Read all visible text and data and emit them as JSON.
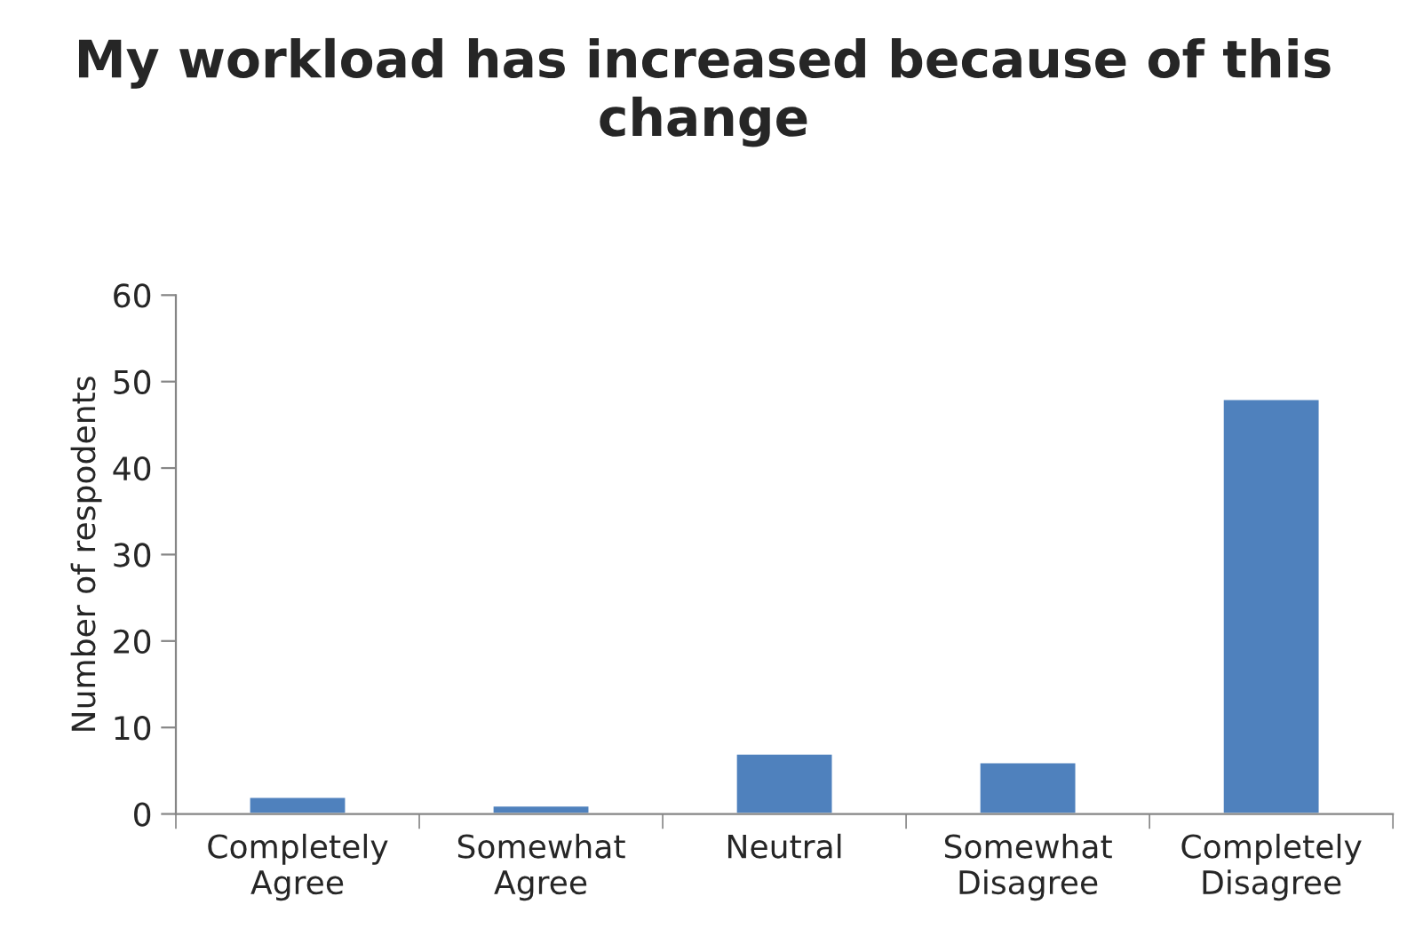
{
  "chart_data": {
    "type": "bar",
    "title": "My workload has increased because of this change",
    "ylabel": "Number of respodents",
    "categories": [
      "Completely Agree",
      "Somewhat Agree",
      "Neutral",
      "Somewhat Disagree",
      "Completely Disagree"
    ],
    "values": [
      2,
      1,
      7,
      6,
      48
    ],
    "color": "#4f81bd",
    "ylim": [
      0,
      60
    ],
    "yticks": [
      0,
      10,
      20,
      30,
      40,
      50,
      60
    ],
    "grid": false,
    "legend": false
  }
}
